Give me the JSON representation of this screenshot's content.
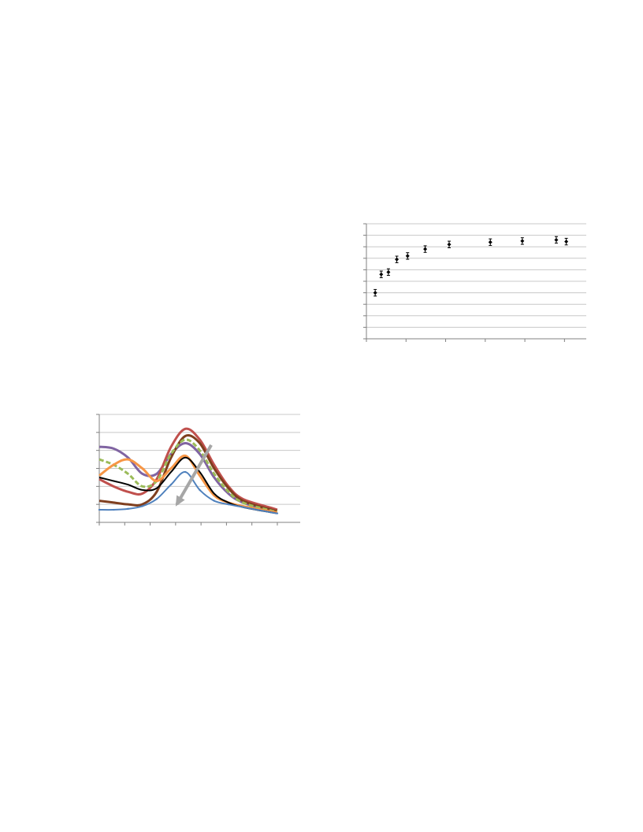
{
  "chart_data": [
    {
      "type": "scatter",
      "title": "",
      "xlabel": "",
      "ylabel": "",
      "x_ticks": 6,
      "y_gridlines": 10,
      "grid": true,
      "ylim": [
        0,
        10
      ],
      "xlim": [
        0,
        5.5
      ],
      "points": [
        {
          "x": 0.22,
          "y": 4.0,
          "err": 0.15
        },
        {
          "x": 0.37,
          "y": 5.6,
          "err": 0.15
        },
        {
          "x": 0.55,
          "y": 5.8,
          "err": 0.15
        },
        {
          "x": 0.76,
          "y": 6.9,
          "err": 0.15
        },
        {
          "x": 1.03,
          "y": 7.2,
          "err": 0.15
        },
        {
          "x": 1.47,
          "y": 7.8,
          "err": 0.15
        },
        {
          "x": 2.07,
          "y": 8.2,
          "err": 0.15
        },
        {
          "x": 3.1,
          "y": 8.4,
          "err": 0.15
        },
        {
          "x": 3.9,
          "y": 8.5,
          "err": 0.15
        },
        {
          "x": 4.75,
          "y": 8.6,
          "err": 0.15
        },
        {
          "x": 5.0,
          "y": 8.45,
          "err": 0.15
        }
      ]
    },
    {
      "type": "line",
      "title": "",
      "xlabel": "",
      "ylabel": "",
      "grid": true,
      "x_ticks": 8,
      "y_gridlines": 6,
      "xlim": [
        0,
        7
      ],
      "ylim": [
        0,
        6
      ],
      "annotation": "downward-arrow",
      "series": [
        {
          "color": "#8064A2",
          "width": 3,
          "dashed": false,
          "x": [
            0,
            0.5,
            1,
            1.5,
            2,
            2.5,
            3,
            3.5,
            4,
            4.5,
            5,
            6,
            6.2
          ],
          "y": [
            4.2,
            4.1,
            3.6,
            2.7,
            2.7,
            3.8,
            4.4,
            3.8,
            2.5,
            1.6,
            1.1,
            0.6,
            0.55
          ]
        },
        {
          "color": "#C0504D",
          "width": 3,
          "dashed": false,
          "x": [
            0,
            0.5,
            1,
            1.5,
            2,
            2.5,
            3,
            3.5,
            4,
            4.5,
            5,
            6,
            6.2
          ],
          "y": [
            2.4,
            2.0,
            1.7,
            1.6,
            2.4,
            4.2,
            5.2,
            4.6,
            3.2,
            2.0,
            1.3,
            0.8,
            0.7
          ]
        },
        {
          "color": "#7F3F1F",
          "width": 3,
          "dashed": false,
          "x": [
            0,
            0.5,
            1,
            1.5,
            2,
            2.5,
            3,
            3.5,
            4,
            4.5,
            5,
            6,
            6.2
          ],
          "y": [
            1.2,
            1.1,
            1.0,
            1.0,
            1.7,
            3.6,
            4.8,
            4.4,
            3.0,
            1.9,
            1.2,
            0.7,
            0.65
          ]
        },
        {
          "color": "#9BBB59",
          "width": 3,
          "dashed": true,
          "x": [
            0,
            0.5,
            1,
            1.5,
            2,
            2.5,
            3,
            3.5,
            4,
            4.5,
            5,
            6,
            6.2
          ],
          "y": [
            3.5,
            3.2,
            2.7,
            2.0,
            2.3,
            3.8,
            4.6,
            4.0,
            2.7,
            1.7,
            1.1,
            0.65,
            0.6
          ]
        },
        {
          "color": "#F79646",
          "width": 3,
          "dashed": false,
          "x": [
            0,
            0.5,
            1,
            1.5,
            2,
            2.5,
            3,
            3.5,
            4,
            4.5,
            5,
            6,
            6.2
          ],
          "y": [
            2.6,
            3.2,
            3.5,
            3.0,
            2.3,
            3.0,
            3.7,
            2.6,
            1.5,
            1.1,
            0.9,
            0.6,
            0.55
          ]
        },
        {
          "color": "#000000",
          "width": 2,
          "dashed": false,
          "x": [
            0,
            0.5,
            1,
            1.5,
            2,
            2.5,
            3,
            3.5,
            4,
            4.5,
            5,
            6,
            6.2
          ],
          "y": [
            2.5,
            2.3,
            2.1,
            1.8,
            1.9,
            2.8,
            3.6,
            2.8,
            1.6,
            1.1,
            0.85,
            0.55,
            0.5
          ]
        },
        {
          "color": "#4F81BD",
          "width": 2,
          "dashed": false,
          "x": [
            0,
            0.5,
            1,
            1.5,
            2,
            2.5,
            3,
            3.5,
            4,
            4.5,
            5,
            6,
            6.2
          ],
          "y": [
            0.7,
            0.7,
            0.75,
            0.9,
            1.3,
            2.1,
            2.8,
            1.8,
            1.2,
            1.0,
            0.85,
            0.55,
            0.5
          ]
        }
      ]
    }
  ]
}
